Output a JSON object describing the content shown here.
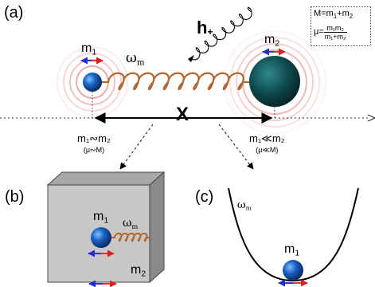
{
  "panels": {
    "a": "(a)",
    "b": "(b)",
    "c": "(c)"
  },
  "formulas": {
    "total_mass": "M=m",
    "total_mass_sub1": "1",
    "total_mass_plus": "+m",
    "total_mass_sub2": "2",
    "reduced_mass_lhs": "μ=",
    "reduced_num": "m₁m₂",
    "reduced_den": "m₁+m₂"
  },
  "labels": {
    "m1_a": "m",
    "m1_a_sub": "1",
    "m2_a": "m",
    "m2_a_sub": "2",
    "omega_a": "ω",
    "omega_a_sub": "m",
    "separation": "X",
    "h_plus": "h",
    "h_plus_sub": "+",
    "m1_b": "m",
    "m1_b_sub": "1",
    "m2_b": "m",
    "m2_b_sub": "2",
    "omega_b": "ω",
    "omega_b_sub": "m",
    "omega_c": "ω",
    "omega_c_sub": "m",
    "m1_c": "m",
    "m1_c_sub": "1"
  },
  "conditions": {
    "left": "m₁∾m₂",
    "left_sub": "(μ∾M)",
    "right": "m₁≪m₂",
    "right_sub": "(μ≪M)"
  },
  "colors": {
    "spring": "#b5652e",
    "m1_ball": "#1a64c8",
    "m2_ball": "#0f4a4e",
    "arrow_red": "#e02020",
    "arrow_blue": "#2030d0",
    "glow": "#e06060",
    "box_face": "#c8c8c8",
    "box_side": "#8a8a8a",
    "box_top": "#a8a8a8"
  }
}
